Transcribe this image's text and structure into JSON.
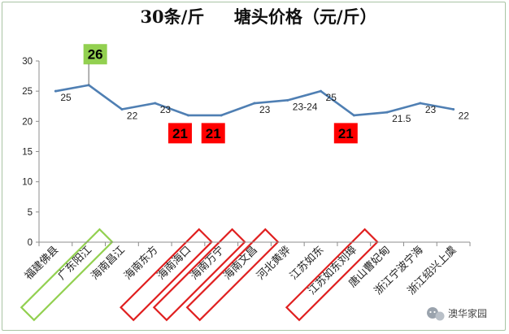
{
  "chart_data": {
    "type": "line",
    "title": "30条/斤     塘头价格（元/斤）",
    "xlabel": "",
    "ylabel": "",
    "ylim": [
      0,
      30
    ],
    "yticks": [
      0,
      5,
      10,
      15,
      20,
      25,
      30
    ],
    "grid": false,
    "legend": "none",
    "categories": [
      "福建佛县",
      "广东阳江",
      "海南昌江",
      "海南东方",
      "海南海口",
      "海南万宁",
      "海南文昌",
      "河北黄骅",
      "江苏如东",
      "江苏如东刘埠",
      "唐山曹妃甸",
      "浙江宁波宁海",
      "浙江绍兴上虞"
    ],
    "values": [
      25,
      26,
      22,
      23,
      21,
      21,
      23,
      23.5,
      25,
      21,
      21.5,
      23,
      22
    ],
    "data_labels": [
      "25",
      "26",
      "22",
      "23",
      "21",
      "21",
      "23",
      "23-24",
      "25",
      "21",
      "21.5",
      "23",
      "22"
    ],
    "highlights": [
      {
        "index": 1,
        "label": "26",
        "color": "#92d050",
        "text_color": "#000000"
      },
      {
        "index": 4,
        "label": "21",
        "color": "#ff0000",
        "text_color": "#000000"
      },
      {
        "index": 5,
        "label": "21",
        "color": "#ff0000",
        "text_color": "#000000"
      },
      {
        "index": 9,
        "label": "21",
        "color": "#ff0000",
        "text_color": "#000000"
      }
    ],
    "outlined_categories": [
      {
        "index": 1,
        "color": "#92d050"
      },
      {
        "index": 4,
        "color": "#e02020"
      },
      {
        "index": 5,
        "color": "#e02020"
      },
      {
        "index": 6,
        "color": "#e02020"
      },
      {
        "index": 9,
        "color": "#e02020"
      }
    ],
    "line_color": "#4f7fb3"
  },
  "watermark": {
    "text": "澳华家园",
    "icon": "wechat-icon"
  }
}
